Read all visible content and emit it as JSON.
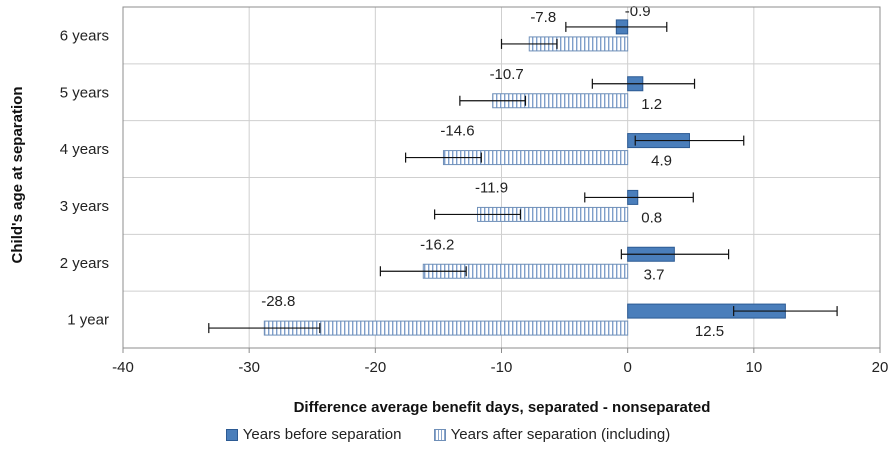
{
  "chart_data": {
    "type": "bar",
    "orientation": "horizontal",
    "title": "",
    "xlabel": "Difference average benefit days, separated - nonseparated",
    "ylabel": "Child's  age at separation",
    "xlim": [
      -40,
      20
    ],
    "x_ticks": [
      "-40",
      "-30",
      "-20",
      "-10",
      "0",
      "10",
      "20"
    ],
    "categories": [
      "6 years",
      "5 years",
      "4 years",
      "3 years",
      "2 years",
      "1 year"
    ],
    "grid": true,
    "legend_position": "bottom",
    "series": [
      {
        "name": "Years before separation",
        "color": "#4a7ebb",
        "fill": "solid",
        "values": [
          -0.9,
          1.2,
          4.9,
          0.8,
          3.7,
          12.5
        ],
        "labels": [
          "-0.9",
          "1.2",
          "4.9",
          "0.8",
          "3.7",
          "12.5"
        ],
        "error_low": [
          -4.9,
          -2.8,
          0.6,
          -3.4,
          -0.5,
          8.4
        ],
        "error_high": [
          3.1,
          5.3,
          9.2,
          5.2,
          8.0,
          16.6
        ]
      },
      {
        "name": "Years  after separation (including)",
        "color": "#7f9fca",
        "fill": "vertical-stripes",
        "values": [
          -7.8,
          -10.7,
          -14.6,
          -11.9,
          -16.2,
          -28.8
        ],
        "labels": [
          "-7.8",
          "-10.7",
          "-14.6",
          "-11.9",
          "-16.2",
          "-28.8"
        ],
        "error_low": [
          -10.0,
          -13.3,
          -17.6,
          -15.3,
          -19.6,
          -33.2
        ],
        "error_high": [
          -5.6,
          -8.1,
          -11.6,
          -8.5,
          -12.8,
          -24.4
        ]
      }
    ]
  }
}
